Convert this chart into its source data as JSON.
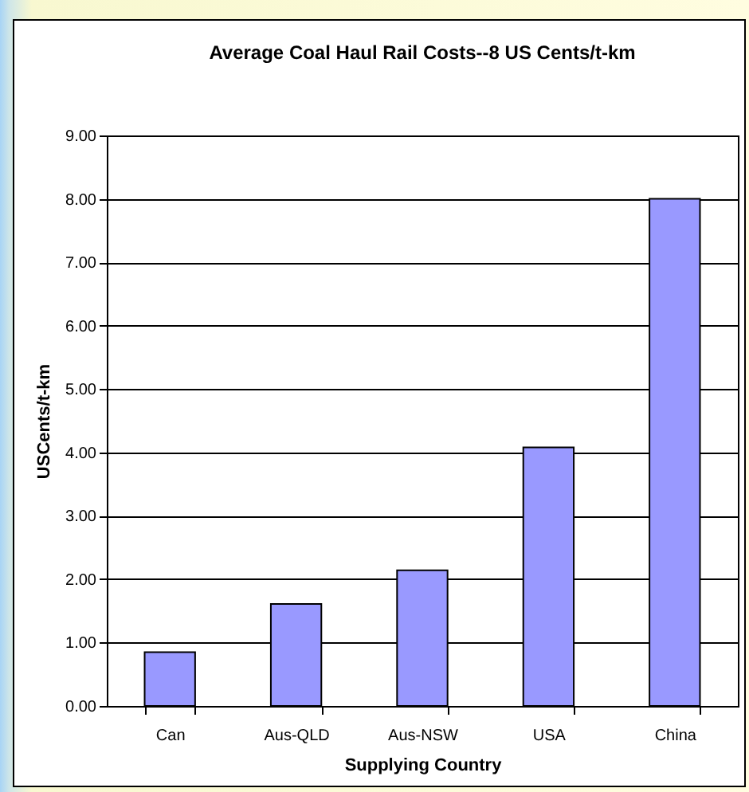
{
  "chart_data": {
    "type": "bar",
    "title": "Average Coal Haul Rail Costs--8 US Cents/t-km",
    "xlabel": "Supplying Country",
    "ylabel": "USCents/t-km",
    "categories": [
      "Can",
      "Aus-QLD",
      "Aus-NSW",
      "USA",
      "China"
    ],
    "values": [
      0.85,
      1.61,
      2.14,
      4.08,
      8.0
    ],
    "color": "#9999ff",
    "ylim": [
      0,
      9
    ],
    "yticks": [
      {
        "value": 0,
        "label": "0.00"
      },
      {
        "value": 1,
        "label": "1.00"
      },
      {
        "value": 2,
        "label": "2.00"
      },
      {
        "value": 3,
        "label": "3.00"
      },
      {
        "value": 4,
        "label": "4.00"
      },
      {
        "value": 5,
        "label": "5.00"
      },
      {
        "value": 6,
        "label": "6.00"
      },
      {
        "value": 7,
        "label": "7.00"
      },
      {
        "value": 8,
        "label": "8.00"
      },
      {
        "value": 9,
        "label": "9.00"
      }
    ],
    "grid": "y"
  }
}
